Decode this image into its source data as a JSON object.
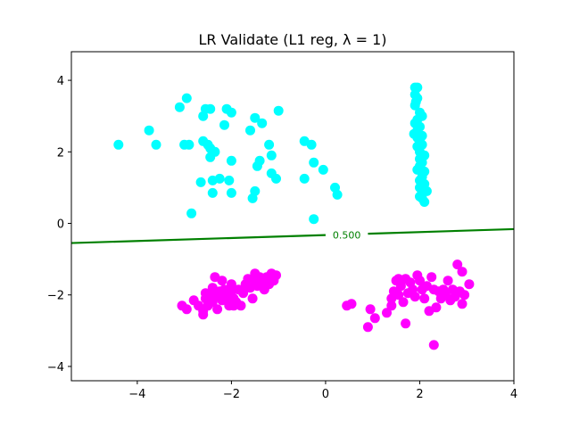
{
  "chart_data": {
    "type": "scatter",
    "title": "LR Validate (L1 reg, λ = 1)",
    "xlabel": "",
    "ylabel": "",
    "xlim": [
      -5.4,
      4.0
    ],
    "ylim": [
      -4.4,
      4.8
    ],
    "x_ticks": [
      -4,
      -2,
      0,
      2,
      4
    ],
    "y_ticks": [
      -4,
      -2,
      0,
      2,
      4
    ],
    "grid": false,
    "colors": {
      "class_a": "#00ffff",
      "class_b": "#ff00ff",
      "boundary": "#008000"
    },
    "decision_boundary": {
      "label": "0.500",
      "label_point": [
        0.45,
        -0.32
      ],
      "points": [
        [
          -5.4,
          -0.55
        ],
        [
          4.0,
          -0.16
        ]
      ]
    },
    "series": [
      {
        "points": [
          [
            -4.4,
            2.2
          ],
          [
            -3.75,
            2.6
          ],
          [
            -3.6,
            2.2
          ],
          [
            -3.1,
            3.25
          ],
          [
            -3.0,
            2.2
          ],
          [
            -2.95,
            3.5
          ],
          [
            -2.9,
            2.2
          ],
          [
            -2.85,
            0.28
          ],
          [
            -2.65,
            1.15
          ],
          [
            -2.6,
            2.3
          ],
          [
            -2.6,
            3.0
          ],
          [
            -2.55,
            3.2
          ],
          [
            -2.5,
            2.2
          ],
          [
            -2.45,
            3.2
          ],
          [
            -2.45,
            2.1
          ],
          [
            -2.45,
            1.85
          ],
          [
            -2.4,
            1.2
          ],
          [
            -2.4,
            0.85
          ],
          [
            -2.35,
            2.0
          ],
          [
            -2.25,
            1.25
          ],
          [
            -2.15,
            2.75
          ],
          [
            -2.1,
            3.2
          ],
          [
            -2.05,
            1.2
          ],
          [
            -2.0,
            3.1
          ],
          [
            -2.0,
            1.75
          ],
          [
            -2.0,
            0.85
          ],
          [
            -1.6,
            2.6
          ],
          [
            -1.55,
            0.7
          ],
          [
            -1.5,
            0.9
          ],
          [
            -1.5,
            2.95
          ],
          [
            -1.45,
            1.6
          ],
          [
            -1.4,
            1.75
          ],
          [
            -1.35,
            2.8
          ],
          [
            -1.2,
            2.2
          ],
          [
            -1.15,
            1.4
          ],
          [
            -1.15,
            1.9
          ],
          [
            -1.05,
            1.25
          ],
          [
            -1.0,
            3.15
          ],
          [
            -0.45,
            2.3
          ],
          [
            -0.45,
            1.25
          ],
          [
            -0.3,
            2.2
          ],
          [
            -0.25,
            1.7
          ],
          [
            -0.25,
            0.12
          ],
          [
            -0.05,
            1.5
          ],
          [
            0.2,
            1.0
          ],
          [
            0.25,
            0.8
          ],
          [
            1.9,
            3.8
          ],
          [
            1.95,
            3.8
          ],
          [
            1.9,
            3.6
          ],
          [
            1.92,
            3.4
          ],
          [
            1.9,
            3.3
          ],
          [
            1.95,
            3.5
          ],
          [
            2.0,
            3.1
          ],
          [
            2.05,
            3.0
          ],
          [
            1.95,
            2.9
          ],
          [
            1.9,
            2.8
          ],
          [
            2.0,
            2.7
          ],
          [
            1.95,
            2.6
          ],
          [
            1.88,
            2.5
          ],
          [
            1.95,
            2.4
          ],
          [
            2.05,
            2.45
          ],
          [
            2.0,
            2.3
          ],
          [
            2.05,
            2.2
          ],
          [
            1.95,
            2.15
          ],
          [
            2.0,
            2.0
          ],
          [
            2.1,
            1.9
          ],
          [
            2.0,
            1.8
          ],
          [
            2.05,
            1.7
          ],
          [
            2.0,
            1.6
          ],
          [
            1.95,
            1.5
          ],
          [
            2.1,
            1.45
          ],
          [
            2.05,
            1.3
          ],
          [
            2.0,
            1.2
          ],
          [
            2.1,
            1.1
          ],
          [
            2.0,
            1.0
          ],
          [
            2.05,
            0.85
          ],
          [
            2.15,
            0.9
          ],
          [
            2.1,
            0.6
          ],
          [
            2.05,
            0.7
          ],
          [
            2.0,
            0.75
          ]
        ]
      },
      {
        "points": [
          [
            -3.05,
            -2.3
          ],
          [
            -2.95,
            -2.4
          ],
          [
            -2.8,
            -2.15
          ],
          [
            -2.7,
            -2.3
          ],
          [
            -2.6,
            -2.45
          ],
          [
            -2.55,
            -2.1
          ],
          [
            -2.55,
            -1.95
          ],
          [
            -2.5,
            -2.3
          ],
          [
            -2.45,
            -2.0
          ],
          [
            -2.4,
            -2.2
          ],
          [
            -2.4,
            -1.8
          ],
          [
            -2.35,
            -2.05
          ],
          [
            -2.3,
            -2.4
          ],
          [
            -2.25,
            -1.9
          ],
          [
            -2.2,
            -2.15
          ],
          [
            -2.2,
            -1.6
          ],
          [
            -2.15,
            -1.85
          ],
          [
            -2.1,
            -2.05
          ],
          [
            -2.05,
            -2.3
          ],
          [
            -2.0,
            -1.9
          ],
          [
            -2.0,
            -1.7
          ],
          [
            -1.95,
            -2.1
          ],
          [
            -1.9,
            -2.2
          ],
          [
            -1.85,
            -1.85
          ],
          [
            -1.8,
            -2.3
          ],
          [
            -1.75,
            -1.95
          ],
          [
            -1.7,
            -1.7
          ],
          [
            -1.65,
            -1.55
          ],
          [
            -1.6,
            -1.8
          ],
          [
            -1.55,
            -2.1
          ],
          [
            -1.5,
            -1.6
          ],
          [
            -1.5,
            -1.4
          ],
          [
            -1.45,
            -1.75
          ],
          [
            -1.4,
            -1.5
          ],
          [
            -1.35,
            -1.65
          ],
          [
            -1.3,
            -1.85
          ],
          [
            -1.25,
            -1.5
          ],
          [
            -1.2,
            -1.7
          ],
          [
            -1.15,
            -1.4
          ],
          [
            -1.1,
            -1.6
          ],
          [
            -1.05,
            -1.45
          ],
          [
            -2.35,
            -1.5
          ],
          [
            -2.6,
            -2.55
          ],
          [
            -1.95,
            -2.3
          ],
          [
            0.45,
            -2.3
          ],
          [
            0.55,
            -2.25
          ],
          [
            0.9,
            -2.9
          ],
          [
            0.95,
            -2.4
          ],
          [
            1.05,
            -2.65
          ],
          [
            1.3,
            -2.5
          ],
          [
            1.4,
            -2.3
          ],
          [
            1.4,
            -2.1
          ],
          [
            1.45,
            -1.9
          ],
          [
            1.5,
            -1.6
          ],
          [
            1.55,
            -2.0
          ],
          [
            1.6,
            -1.75
          ],
          [
            1.65,
            -2.2
          ],
          [
            1.7,
            -1.55
          ],
          [
            1.7,
            -2.8
          ],
          [
            1.75,
            -1.95
          ],
          [
            1.8,
            -1.65
          ],
          [
            1.85,
            -1.85
          ],
          [
            1.9,
            -2.05
          ],
          [
            1.95,
            -1.45
          ],
          [
            2.0,
            -1.6
          ],
          [
            2.05,
            -1.85
          ],
          [
            2.1,
            -2.1
          ],
          [
            2.15,
            -1.75
          ],
          [
            2.2,
            -2.45
          ],
          [
            2.25,
            -1.5
          ],
          [
            2.3,
            -3.4
          ],
          [
            2.35,
            -2.35
          ],
          [
            2.4,
            -1.9
          ],
          [
            2.45,
            -2.1
          ],
          [
            2.5,
            -1.85
          ],
          [
            2.55,
            -2.0
          ],
          [
            2.6,
            -1.6
          ],
          [
            2.65,
            -2.15
          ],
          [
            2.7,
            -1.85
          ],
          [
            2.75,
            -2.05
          ],
          [
            2.8,
            -1.15
          ],
          [
            2.85,
            -1.9
          ],
          [
            2.9,
            -2.25
          ],
          [
            2.9,
            -1.35
          ],
          [
            2.95,
            -2.0
          ],
          [
            3.05,
            -1.7
          ],
          [
            2.3,
            -1.85
          ],
          [
            1.55,
            -1.55
          ]
        ]
      }
    ]
  }
}
